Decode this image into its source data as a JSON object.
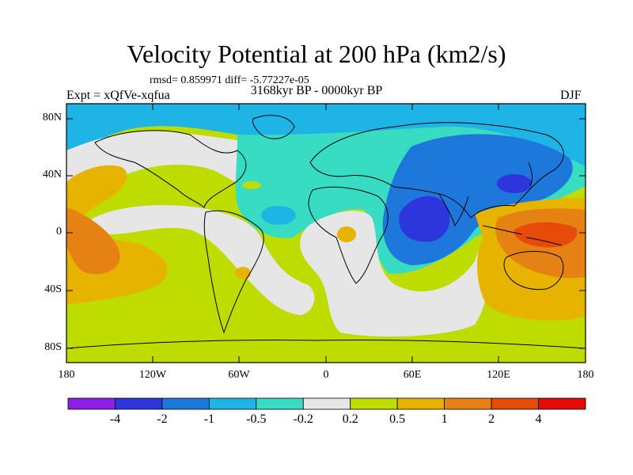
{
  "title": "Velocity Potential at 200 hPa (km2/s)",
  "stats": "rmsd= 0.859971 diff= -5.77227e-05",
  "period": "3168kyr BP - 0000kyr BP",
  "experiment": "Expt = xQfVe-xqfua",
  "season": "DJF",
  "lat_labels": [
    "80N",
    "40N",
    "0",
    "40S",
    "80S"
  ],
  "lon_labels": [
    "180",
    "120W",
    "60W",
    "0",
    "60E",
    "120E",
    "180"
  ],
  "colorbar": {
    "labels": [
      "-4",
      "-2",
      "-1",
      "-0.5",
      "-0.2",
      "0.2",
      "0.5",
      "1",
      "2",
      "4"
    ],
    "colors": [
      "#8c1ee6",
      "#2d36dc",
      "#1e78dc",
      "#1eb4e6",
      "#37dcc3",
      "#e6e6e6",
      "#bedc00",
      "#e6b400",
      "#e68214",
      "#e64b0a",
      "#e60a0a"
    ]
  },
  "palette": {
    "ocean_green": "#bedc00",
    "white": "#e6e6e6",
    "teal": "#37dcc3",
    "light_blue": "#1eb4e6",
    "blue": "#1e78dc",
    "deep_blue": "#2d36dc",
    "gold": "#e6b400",
    "orange": "#e68214",
    "red_orange": "#e64b0a"
  }
}
